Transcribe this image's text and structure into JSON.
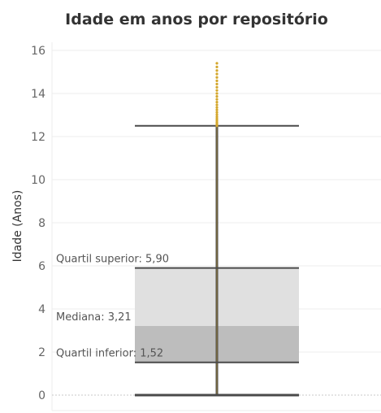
{
  "chart_data": {
    "type": "box",
    "title": "Idade em anos por repositório",
    "xlabel": "",
    "ylabel": "Idade (Anos)",
    "ylim": [
      0,
      16
    ],
    "yticks": [
      0,
      2,
      4,
      6,
      8,
      10,
      12,
      14,
      16
    ],
    "grid": true,
    "box": {
      "min": 0,
      "q1": 1.52,
      "median": 3.21,
      "q3": 5.9,
      "whisker_high": 12.5,
      "max_outlier": 15.4
    },
    "annotations": [
      {
        "key": "q3",
        "text": "Quartil superior: 5,90"
      },
      {
        "key": "median",
        "text": "Mediana: 3,21"
      },
      {
        "key": "q1",
        "text": "Quartil inferior: 1,52"
      }
    ],
    "colors": {
      "upper_box": "#e0e0e0",
      "lower_box": "#bdbdbd",
      "lines": "#4a4a4a",
      "points": "#d4a72c",
      "grid": "#ececec"
    }
  }
}
